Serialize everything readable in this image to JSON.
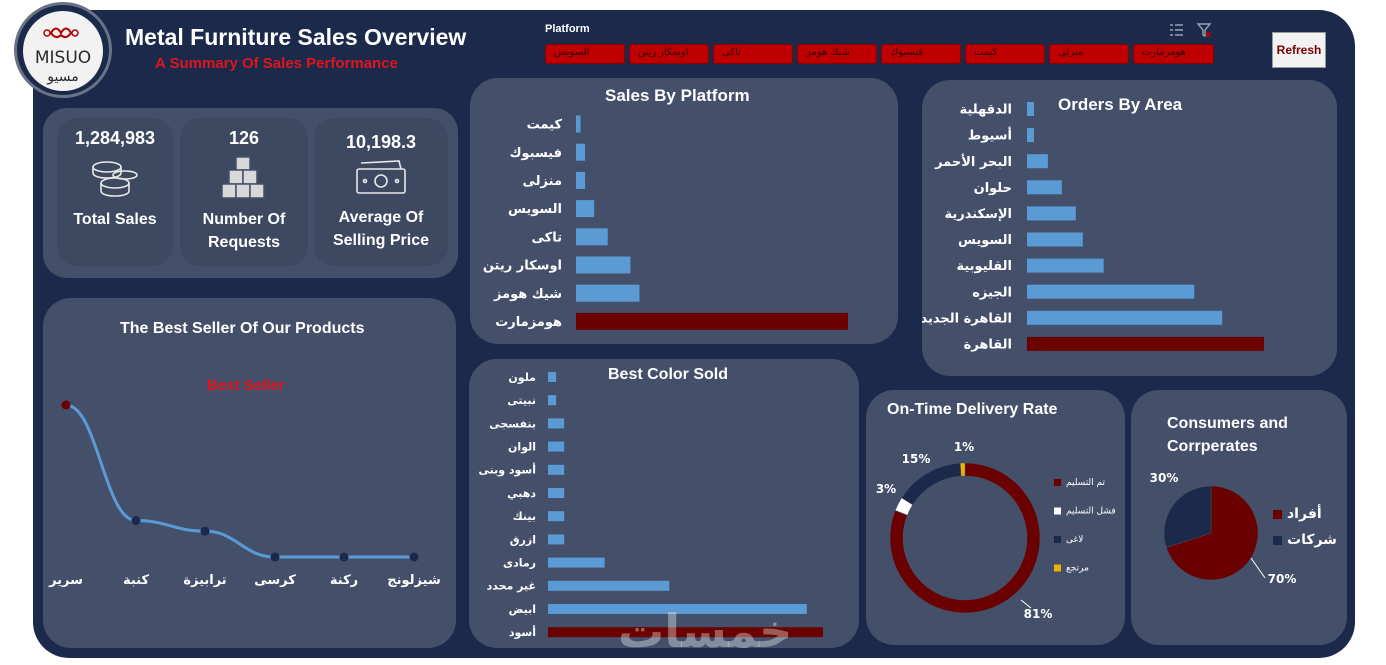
{
  "header": {
    "title": "Metal Furniture Sales Overview",
    "subtitle": "A Summary Of Sales Performance",
    "logo_text_en": "MISUO",
    "logo_text_ar": "مسيو"
  },
  "platform_slicer": {
    "label": "Platform",
    "items": [
      "السويس",
      "اوسكار ريتن",
      "تاكى",
      "شيك هومز",
      "فيسبوك",
      "كيمت",
      "منزلى",
      "هومزمارت"
    ]
  },
  "refresh_label": "Refresh",
  "kpis": [
    {
      "value": "1,284,983",
      "label": "Total Sales",
      "icon": "coins-icon"
    },
    {
      "value": "126",
      "label": "Number Of Requests",
      "icon": "boxes-icon"
    },
    {
      "value": "10,198.3",
      "label": "Average Of Selling Price",
      "icon": "cash-icon"
    }
  ],
  "colors": {
    "dark_red": "#6b0000",
    "blue": "#5b9bd5",
    "navy": "#1b2a4a",
    "panel": "#44506a",
    "gold": "#f0b400",
    "white": "#ffffff"
  },
  "watermark": "خمسات",
  "chart_data": [
    {
      "id": "platform",
      "type": "bar",
      "title": "Sales By Platform",
      "orientation": "horizontal",
      "categories": [
        "كيمت",
        "فيسبوك",
        "منزلى",
        "السويس",
        "تاكى",
        "اوسكار ريتن",
        "شيك هومز",
        "هومزمارت"
      ],
      "values": [
        1,
        2,
        2,
        4,
        7,
        12,
        14,
        60
      ],
      "highlight": "هومزمارت"
    },
    {
      "id": "area",
      "type": "bar",
      "title": "Orders By Area",
      "orientation": "horizontal",
      "categories": [
        "الدقهلية",
        "أسيوط",
        "البحر الأحمر",
        "حلوان",
        "الإسكندرية",
        "السويس",
        "القليوبية",
        "الجيزه",
        "القاهرة الجديدة",
        "القاهرة"
      ],
      "values": [
        1,
        1,
        3,
        5,
        7,
        8,
        11,
        24,
        28,
        34
      ],
      "highlight": "القاهرة"
    },
    {
      "id": "bestseller",
      "type": "line",
      "title": "The Best Seller Of Our Products",
      "annotation": "Best Seller",
      "categories": [
        "سرير",
        "كنبة",
        "ترابيزة",
        "كرسى",
        "ركنة",
        "شيزلونج"
      ],
      "values": [
        100,
        24,
        17,
        0,
        0,
        0
      ]
    },
    {
      "id": "color",
      "type": "bar",
      "title": "Best Color Sold",
      "orientation": "horizontal",
      "categories": [
        "ملون",
        "نبيتى",
        "بنفسجى",
        "الوان",
        "أسود وبنى",
        "دهبي",
        "بينك",
        "ازرق",
        "رمادى",
        "غير محدد",
        "ابيض",
        "أسود"
      ],
      "values": [
        1,
        1,
        2,
        2,
        2,
        2,
        2,
        2,
        7,
        15,
        32,
        34
      ],
      "highlight": "أسود"
    },
    {
      "id": "delivery",
      "type": "pie",
      "title": "On-Time Delivery Rate",
      "donut": true,
      "labels": [
        "تم التسليم",
        "فشل التسليم",
        "لاغى",
        "مرتجع"
      ],
      "values": [
        81,
        3,
        15,
        1
      ],
      "value_labels": [
        "81%",
        "3%",
        "15%",
        "1%"
      ],
      "colors": [
        "#6b0000",
        "#ffffff",
        "#1b2a4a",
        "#f0b400"
      ],
      "legend": "right"
    },
    {
      "id": "consumers",
      "type": "pie",
      "title": "Consumers and Corrperates",
      "title_lines": [
        "Consumers and",
        "Corrperates"
      ],
      "labels": [
        "أفراد",
        "شركات"
      ],
      "values": [
        70,
        30
      ],
      "value_labels": [
        "70%",
        "30%"
      ],
      "colors": [
        "#6b0000",
        "#1b2a4a"
      ],
      "legend": "right"
    }
  ]
}
